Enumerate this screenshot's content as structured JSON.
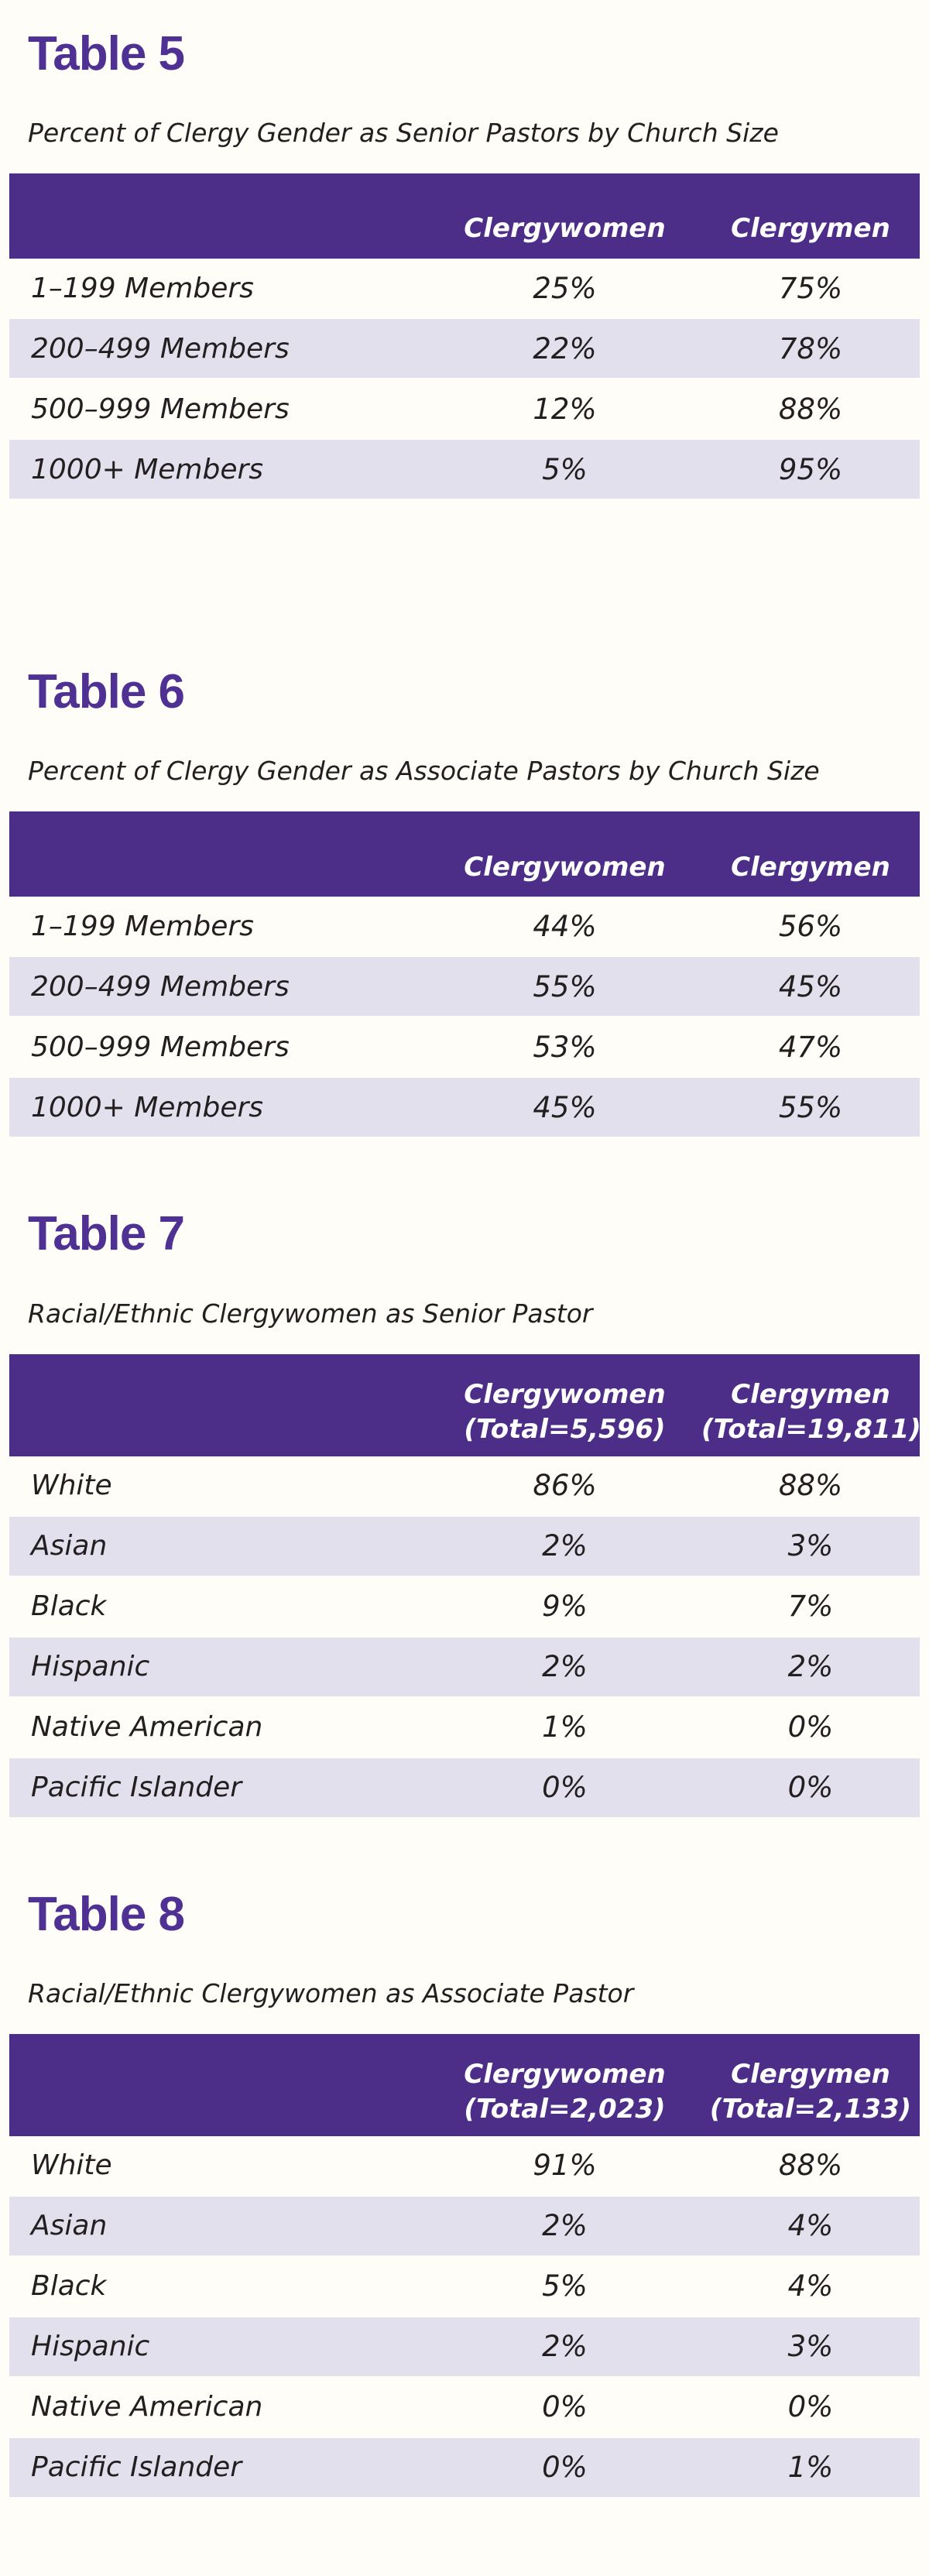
{
  "colors": {
    "header_bar": "#4C2E88",
    "section_title": "#4F3193",
    "alt_row": "#E3E0EE",
    "header_text": "#FFFFFF",
    "body_text": "#231F20",
    "background": "#FEFDF8"
  },
  "tables": [
    {
      "title": "Table 5",
      "subtitle": "Percent of Clergy Gender as Senior Pastors by Church Size",
      "columns": [
        "Clergywomen",
        "Clergymen"
      ],
      "rows": [
        {
          "label": "1–199 Members",
          "values": [
            "25%",
            "75%"
          ]
        },
        {
          "label": "200–499 Members",
          "values": [
            "22%",
            "78%"
          ]
        },
        {
          "label": "500–999 Members",
          "values": [
            "12%",
            "88%"
          ]
        },
        {
          "label": "1000+ Members",
          "values": [
            "5%",
            "95%"
          ]
        }
      ]
    },
    {
      "title": "Table 6",
      "subtitle": "Percent of Clergy Gender as Associate Pastors by Church Size",
      "columns": [
        "Clergywomen",
        "Clergymen"
      ],
      "rows": [
        {
          "label": "1–199 Members",
          "values": [
            "44%",
            "56%"
          ]
        },
        {
          "label": "200–499 Members",
          "values": [
            "55%",
            "45%"
          ]
        },
        {
          "label": "500–999 Members",
          "values": [
            "53%",
            "47%"
          ]
        },
        {
          "label": "1000+ Members",
          "values": [
            "45%",
            "55%"
          ]
        }
      ]
    },
    {
      "title": "Table 7",
      "subtitle": "Racial/Ethnic Clergywomen as Senior Pastor",
      "columns": [
        "Clergywomen",
        "Clergymen"
      ],
      "column_subtitles": [
        "(Total=5,596)",
        "(Total=19,811)"
      ],
      "rows": [
        {
          "label": "White",
          "values": [
            "86%",
            "88%"
          ]
        },
        {
          "label": "Asian",
          "values": [
            "2%",
            "3%"
          ]
        },
        {
          "label": "Black",
          "values": [
            "9%",
            "7%"
          ]
        },
        {
          "label": "Hispanic",
          "values": [
            "2%",
            "2%"
          ]
        },
        {
          "label": "Native American",
          "values": [
            "1%",
            "0%"
          ]
        },
        {
          "label": "Pacific Islander",
          "values": [
            "0%",
            "0%"
          ]
        }
      ]
    },
    {
      "title": "Table 8",
      "subtitle": "Racial/Ethnic Clergywomen as Associate Pastor",
      "columns": [
        "Clergywomen",
        "Clergymen"
      ],
      "column_subtitles": [
        "(Total=2,023)",
        "(Total=2,133)"
      ],
      "rows": [
        {
          "label": "White",
          "values": [
            "91%",
            "88%"
          ]
        },
        {
          "label": "Asian",
          "values": [
            "2%",
            "4%"
          ]
        },
        {
          "label": "Black",
          "values": [
            "5%",
            "4%"
          ]
        },
        {
          "label": "Hispanic",
          "values": [
            "2%",
            "3%"
          ]
        },
        {
          "label": "Native American",
          "values": [
            "0%",
            "0%"
          ]
        },
        {
          "label": "Pacific Islander",
          "values": [
            "0%",
            "1%"
          ]
        }
      ]
    }
  ]
}
